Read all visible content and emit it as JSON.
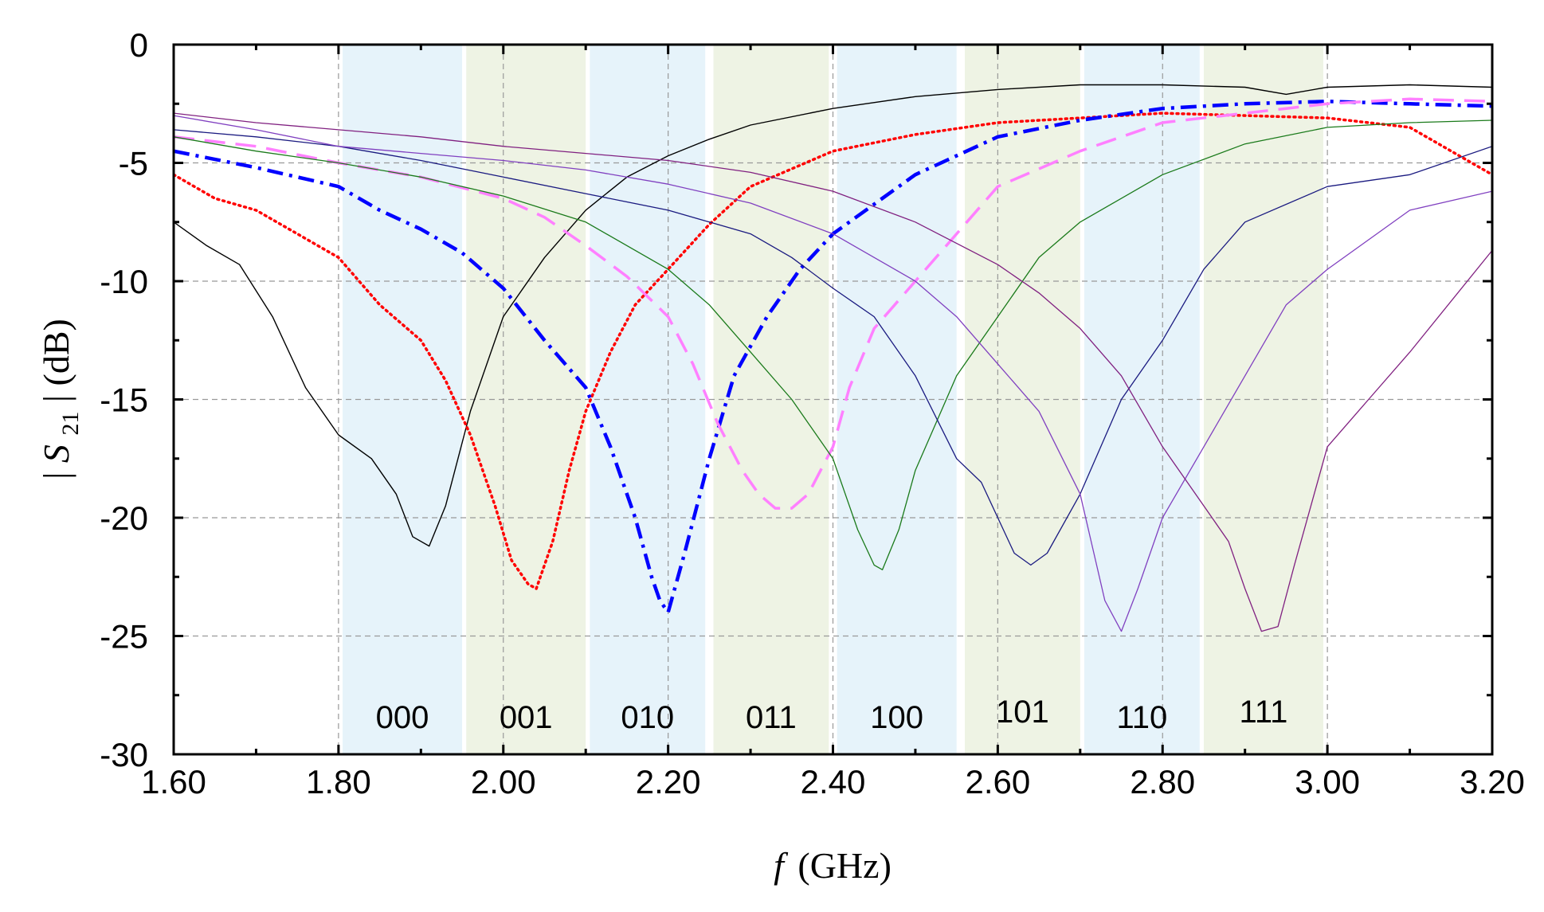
{
  "chart_data": {
    "type": "line",
    "title": "",
    "xlabel_italic": "f",
    "xlabel_rest": "(GHz)",
    "ylabel_pre": "|",
    "ylabel_italic": "S",
    "ylabel_sub": "21",
    "ylabel_post": "| (dB)",
    "xlim": [
      1.6,
      3.2
    ],
    "ylim": [
      -30,
      0
    ],
    "xticks": [
      1.6,
      1.8,
      2.0,
      2.2,
      2.4,
      2.6,
      2.8,
      3.0,
      3.2
    ],
    "xtick_labels": [
      "1.60",
      "1.80",
      "2.00",
      "2.20",
      "2.40",
      "2.60",
      "2.80",
      "3.00",
      "3.20"
    ],
    "yticks": [
      0,
      -5,
      -10,
      -15,
      -20,
      -25,
      -30
    ],
    "ytick_labels": [
      "0",
      "-5",
      "-10",
      "-15",
      "-20",
      "-25",
      "-30"
    ],
    "grid": true,
    "bands": [
      {
        "label": "000",
        "x0": 1.805,
        "x1": 1.95,
        "color": "#e6f3fa"
      },
      {
        "label": "001",
        "x0": 1.955,
        "x1": 2.1,
        "color": "#eef3e4"
      },
      {
        "label": "010",
        "x0": 2.105,
        "x1": 2.245,
        "color": "#e6f3fa"
      },
      {
        "label": "011",
        "x0": 2.255,
        "x1": 2.395,
        "color": "#eef3e4"
      },
      {
        "label": "100",
        "x0": 2.405,
        "x1": 2.55,
        "color": "#e6f3fa"
      },
      {
        "label": "101",
        "x0": 2.56,
        "x1": 2.7,
        "color": "#eef3e4"
      },
      {
        "label": "110",
        "x0": 2.705,
        "x1": 2.845,
        "color": "#e6f3fa"
      },
      {
        "label": "111",
        "x0": 2.85,
        "x1": 2.995,
        "color": "#eef3e4"
      }
    ],
    "series": [
      {
        "name": "000",
        "color": "#000000",
        "style": "solid",
        "width": 1.4,
        "x": [
          1.6,
          1.64,
          1.68,
          1.72,
          1.76,
          1.8,
          1.84,
          1.87,
          1.89,
          1.91,
          1.93,
          1.96,
          2.0,
          2.05,
          2.1,
          2.15,
          2.2,
          2.25,
          2.3,
          2.4,
          2.5,
          2.6,
          2.7,
          2.8,
          2.9,
          2.95,
          3.0,
          3.1,
          3.2
        ],
        "values": [
          -7.5,
          -8.5,
          -9.3,
          -11.5,
          -14.5,
          -16.5,
          -17.5,
          -19.0,
          -20.8,
          -21.2,
          -19.5,
          -15.5,
          -11.5,
          -9.0,
          -7.0,
          -5.6,
          -4.7,
          -4.0,
          -3.4,
          -2.7,
          -2.2,
          -1.9,
          -1.7,
          -1.7,
          -1.8,
          -2.1,
          -1.8,
          -1.7,
          -1.8
        ]
      },
      {
        "name": "001",
        "color": "#ff0000",
        "style": "dotted",
        "width": 3.5,
        "x": [
          1.6,
          1.65,
          1.7,
          1.75,
          1.8,
          1.85,
          1.9,
          1.93,
          1.96,
          1.99,
          2.01,
          2.03,
          2.04,
          2.06,
          2.08,
          2.1,
          2.13,
          2.16,
          2.2,
          2.25,
          2.3,
          2.4,
          2.5,
          2.6,
          2.7,
          2.8,
          2.9,
          3.0,
          3.1,
          3.2
        ],
        "values": [
          -5.5,
          -6.5,
          -7.0,
          -8.0,
          -9.0,
          -11.0,
          -12.5,
          -14.2,
          -16.5,
          -19.5,
          -21.8,
          -22.8,
          -23.0,
          -21.0,
          -18.0,
          -15.5,
          -13.0,
          -11.0,
          -9.5,
          -7.6,
          -6.0,
          -4.5,
          -3.8,
          -3.3,
          -3.1,
          -2.9,
          -3.0,
          -3.1,
          -3.5,
          -5.5
        ]
      },
      {
        "name": "010",
        "color": "#0000ff",
        "style": "dashdot",
        "width": 4.5,
        "x": [
          1.6,
          1.7,
          1.8,
          1.85,
          1.9,
          1.95,
          2.0,
          2.05,
          2.1,
          2.13,
          2.16,
          2.18,
          2.19,
          2.2,
          2.22,
          2.25,
          2.28,
          2.32,
          2.36,
          2.4,
          2.5,
          2.6,
          2.7,
          2.8,
          2.9,
          3.0,
          3.1,
          3.2
        ],
        "values": [
          -4.5,
          -5.2,
          -6.0,
          -7.0,
          -7.8,
          -8.8,
          -10.3,
          -12.5,
          -14.5,
          -17.0,
          -20.0,
          -22.5,
          -23.5,
          -24.0,
          -21.5,
          -17.5,
          -14.0,
          -11.5,
          -9.5,
          -8.0,
          -5.5,
          -3.9,
          -3.2,
          -2.7,
          -2.5,
          -2.4,
          -2.5,
          -2.6
        ]
      },
      {
        "name": "011",
        "color": "#ff80ff",
        "style": "dashed",
        "width": 3.5,
        "x": [
          1.6,
          1.7,
          1.8,
          1.9,
          2.0,
          2.05,
          2.1,
          2.15,
          2.2,
          2.23,
          2.26,
          2.29,
          2.31,
          2.33,
          2.35,
          2.37,
          2.4,
          2.42,
          2.45,
          2.5,
          2.55,
          2.6,
          2.7,
          2.8,
          2.9,
          3.0,
          3.1,
          3.2
        ],
        "values": [
          -3.9,
          -4.3,
          -5.0,
          -5.6,
          -6.5,
          -7.3,
          -8.5,
          -9.8,
          -11.5,
          -13.5,
          -16.0,
          -18.0,
          -19.0,
          -19.6,
          -19.6,
          -19.0,
          -17.0,
          -14.5,
          -12.0,
          -10.0,
          -8.0,
          -6.0,
          -4.5,
          -3.3,
          -2.9,
          -2.5,
          -2.3,
          -2.4
        ]
      },
      {
        "name": "100",
        "color": "#1a7a1a",
        "style": "solid",
        "width": 1.3,
        "x": [
          1.6,
          1.7,
          1.8,
          1.9,
          2.0,
          2.1,
          2.2,
          2.25,
          2.3,
          2.35,
          2.4,
          2.43,
          2.45,
          2.46,
          2.48,
          2.5,
          2.55,
          2.6,
          2.65,
          2.7,
          2.8,
          2.9,
          3.0,
          3.1,
          3.2
        ],
        "values": [
          -3.9,
          -4.5,
          -5.0,
          -5.6,
          -6.4,
          -7.5,
          -9.5,
          -11.0,
          -13.0,
          -15.0,
          -17.5,
          -20.5,
          -22.0,
          -22.2,
          -20.5,
          -18.0,
          -14.0,
          -11.5,
          -9.0,
          -7.5,
          -5.5,
          -4.2,
          -3.5,
          -3.3,
          -3.2
        ]
      },
      {
        "name": "101",
        "color": "#1a1a80",
        "style": "solid",
        "width": 1.3,
        "x": [
          1.6,
          1.7,
          1.8,
          1.9,
          2.0,
          2.1,
          2.2,
          2.3,
          2.35,
          2.4,
          2.45,
          2.5,
          2.55,
          2.58,
          2.6,
          2.62,
          2.64,
          2.66,
          2.7,
          2.75,
          2.8,
          2.85,
          2.9,
          3.0,
          3.1,
          3.2
        ],
        "values": [
          -3.6,
          -3.9,
          -4.3,
          -4.9,
          -5.6,
          -6.3,
          -7.0,
          -8.0,
          -9.0,
          -10.3,
          -11.5,
          -14.0,
          -17.5,
          -18.5,
          -20.0,
          -21.5,
          -22.0,
          -21.5,
          -19.0,
          -15.0,
          -12.5,
          -9.5,
          -7.5,
          -6.0,
          -5.5,
          -4.3
        ]
      },
      {
        "name": "110",
        "color": "#8040c0",
        "style": "solid",
        "width": 1.3,
        "x": [
          1.6,
          1.7,
          1.8,
          1.9,
          2.0,
          2.1,
          2.2,
          2.3,
          2.4,
          2.5,
          2.55,
          2.6,
          2.65,
          2.7,
          2.73,
          2.75,
          2.77,
          2.8,
          2.85,
          2.9,
          2.95,
          3.0,
          3.1,
          3.2
        ],
        "values": [
          -3.0,
          -3.6,
          -4.3,
          -4.6,
          -4.9,
          -5.3,
          -5.9,
          -6.7,
          -8.0,
          -10.0,
          -11.5,
          -13.5,
          -15.5,
          -19.0,
          -23.5,
          -24.8,
          -23.0,
          -20.0,
          -17.0,
          -14.0,
          -11.0,
          -9.5,
          -7.0,
          -6.2
        ]
      },
      {
        "name": "111",
        "color": "#802080",
        "style": "solid",
        "width": 1.3,
        "x": [
          1.6,
          1.7,
          1.8,
          1.9,
          2.0,
          2.1,
          2.2,
          2.3,
          2.4,
          2.5,
          2.6,
          2.65,
          2.7,
          2.75,
          2.8,
          2.85,
          2.88,
          2.9,
          2.92,
          2.94,
          2.96,
          3.0,
          3.05,
          3.1,
          3.2
        ],
        "values": [
          -2.9,
          -3.3,
          -3.6,
          -3.9,
          -4.3,
          -4.6,
          -4.9,
          -5.4,
          -6.2,
          -7.5,
          -9.3,
          -10.5,
          -12.0,
          -14.0,
          -17.0,
          -19.5,
          -21.0,
          -23.0,
          -24.8,
          -24.6,
          -22.0,
          -17.0,
          -15.0,
          -13.0,
          -8.7
        ]
      }
    ]
  }
}
